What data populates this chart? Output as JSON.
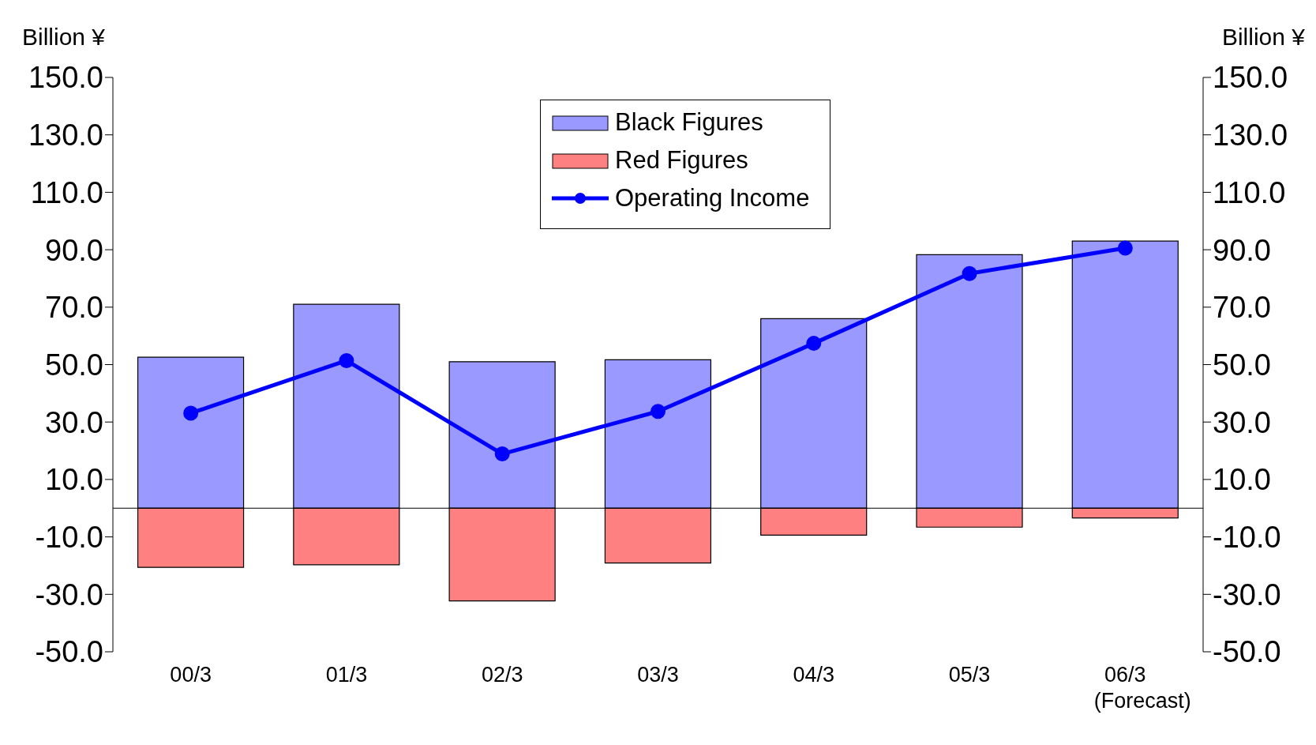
{
  "chart_data": {
    "type": "bar",
    "ylabel": "Billion ¥",
    "y2label": "Billion ¥",
    "categories": [
      "00/3",
      "01/3",
      "02/3",
      "03/3",
      "04/3",
      "05/3",
      "06/3\n(Forecast)"
    ],
    "stacked": true,
    "series": [
      {
        "name": "Black Figures",
        "color": "#9999ff",
        "values": [
          52.6,
          71,
          51,
          51.7,
          66,
          88.3,
          93
        ]
      },
      {
        "name": "Red Figures",
        "color": "#ff8080",
        "values": [
          -20.6,
          -19.7,
          -32.3,
          -19.1,
          -9.4,
          -6.6,
          -3.4
        ]
      },
      {
        "name": "Operating Income",
        "type": "line",
        "color": "#0000ff",
        "values": [
          33.1,
          51.4,
          18.9,
          33.7,
          57.4,
          81.7,
          90.6
        ]
      }
    ],
    "ylim": [
      -50,
      150
    ],
    "yticks": [
      {
        "value": 150,
        "label": "150.0"
      },
      {
        "value": 130,
        "label": "130.0"
      },
      {
        "value": 110,
        "label": "110.0"
      },
      {
        "value": 90,
        "label": "90.0"
      },
      {
        "value": 70,
        "label": "70.0"
      },
      {
        "value": 50,
        "label": "50.0"
      },
      {
        "value": 30,
        "label": "30.0"
      },
      {
        "value": 10,
        "label": "10.0"
      },
      {
        "value": -10,
        "label": "-10.0"
      },
      {
        "value": -30,
        "label": "-30.0"
      },
      {
        "value": -50,
        "label": "-50.0"
      }
    ],
    "y2lim": [
      -50,
      150
    ],
    "y2ticks": [
      {
        "value": 150,
        "label": "150.0"
      },
      {
        "value": 130,
        "label": "130.0"
      },
      {
        "value": 110,
        "label": "110.0"
      },
      {
        "value": 90,
        "label": "90.0"
      },
      {
        "value": 70,
        "label": "70.0"
      },
      {
        "value": 50,
        "label": "50.0"
      },
      {
        "value": 30,
        "label": "30.0"
      },
      {
        "value": 10,
        "label": "10.0"
      },
      {
        "value": -10,
        "label": "-10.0"
      },
      {
        "value": -30,
        "label": "-30.0"
      },
      {
        "value": -50,
        "label": "-50.0"
      }
    ],
    "legend": "top",
    "grid": false,
    "marker": "circle",
    "line_style": "solid"
  }
}
